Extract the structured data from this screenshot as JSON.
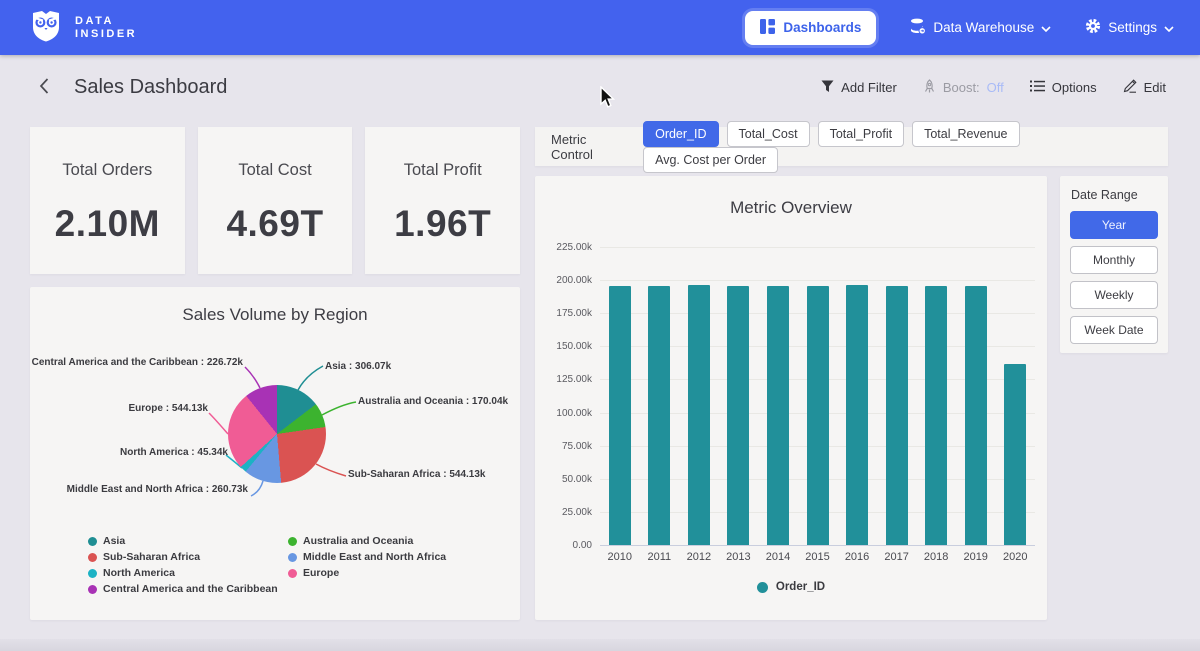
{
  "navbar": {
    "brand": {
      "line1": "DATA",
      "line2": "INSIDER",
      "icon": "owl-logo-icon"
    },
    "dashboards": {
      "label": "Dashboards",
      "icon": "dashboard-grid-icon",
      "active": true
    },
    "data_warehouse": {
      "label": "Data Warehouse",
      "icon": "database-icon",
      "has_dropdown": true
    },
    "settings": {
      "label": "Settings",
      "icon": "gear-icon",
      "has_dropdown": true
    }
  },
  "header": {
    "title": "Sales Dashboard",
    "actions": {
      "add_filter": {
        "label": "Add Filter",
        "icon": "funnel-icon"
      },
      "boost": {
        "label": "Boost:",
        "state": "Off",
        "icon": "rocket-icon"
      },
      "options": {
        "label": "Options",
        "icon": "list-icon"
      },
      "edit": {
        "label": "Edit",
        "icon": "pencil-icon"
      }
    }
  },
  "kpis": [
    {
      "label": "Total Orders",
      "value": "2.10M"
    },
    {
      "label": "Total Cost",
      "value": "4.69T"
    },
    {
      "label": "Total Profit",
      "value": "1.96T"
    }
  ],
  "metric_control": {
    "label": "Metric Control",
    "buttons": [
      {
        "label": "Order_ID",
        "selected": true
      },
      {
        "label": "Total_Cost",
        "selected": false
      },
      {
        "label": "Total_Profit",
        "selected": false
      },
      {
        "label": "Total_Revenue",
        "selected": false
      },
      {
        "label": "Avg. Cost per Order",
        "selected": false
      }
    ]
  },
  "date_range": {
    "label": "Date Range",
    "buttons": [
      {
        "label": "Year",
        "selected": true
      },
      {
        "label": "Monthly",
        "selected": false
      },
      {
        "label": "Weekly",
        "selected": false
      },
      {
        "label": "Week Date",
        "selected": false
      }
    ]
  },
  "colors": {
    "navbar_blue": "#4362ee",
    "selected_button_blue": "#4169e8",
    "bar_teal": "#21909a",
    "boost_off_blue": "#a9bbf7"
  },
  "chart_data": [
    {
      "type": "pie",
      "title": "Sales Volume by Region",
      "unit": "thousands",
      "segments": [
        {
          "name": "Asia",
          "value": 306.07,
          "label": "Asia : 306.07k",
          "color": "#1f8e93"
        },
        {
          "name": "Australia and Oceania",
          "value": 170.04,
          "label": "Australia and Oceania : 170.04k",
          "color": "#3cb32f"
        },
        {
          "name": "Sub-Saharan Africa",
          "value": 544.13,
          "label": "Sub-Saharan Africa : 544.13k",
          "color": "#da5352"
        },
        {
          "name": "Middle East and North Africa",
          "value": 260.73,
          "label": "Middle East and North Africa : 260.73k",
          "color": "#6897e2"
        },
        {
          "name": "North America",
          "value": 45.34,
          "label": "North America : 45.34k",
          "color": "#1cb2c4"
        },
        {
          "name": "Europe",
          "value": 544.13,
          "label": "Europe : 544.13k",
          "color": "#f05c95"
        },
        {
          "name": "Central America and the Caribbean",
          "value": 226.72,
          "label": "Central America and the Caribbean : 226.72k",
          "color": "#a832b5"
        }
      ],
      "legend_display_order": [
        0,
        2,
        4,
        6,
        1,
        3,
        5
      ],
      "legend_position": "bottom"
    },
    {
      "type": "bar",
      "title": "Metric Overview",
      "series_name": "Order_ID",
      "categories": [
        "2010",
        "2011",
        "2012",
        "2013",
        "2014",
        "2015",
        "2016",
        "2017",
        "2018",
        "2019",
        "2020"
      ],
      "values": [
        195600,
        195600,
        196600,
        195400,
        195300,
        195400,
        196600,
        195500,
        195400,
        195600,
        136400
      ],
      "ylim": [
        0,
        225000
      ],
      "ytick_labels": [
        "225.00k",
        "200.00k",
        "175.00k",
        "150.00k",
        "125.00k",
        "100.00k",
        "75.00k",
        "50.00k",
        "25.00k",
        "0.00"
      ],
      "color": "#21909a",
      "grid": true,
      "legend_position": "bottom"
    }
  ]
}
